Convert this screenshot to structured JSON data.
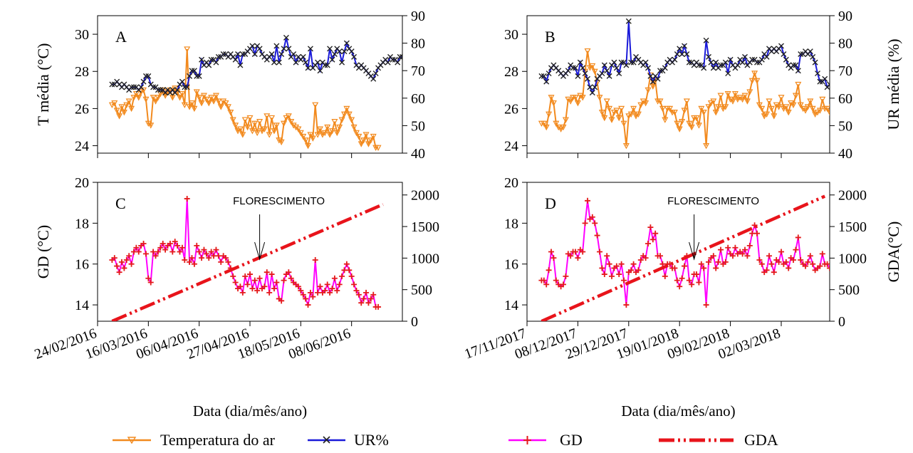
{
  "colors": {
    "temp": "#f28a1e",
    "ur": "#1a1ad9",
    "gd_line": "#ff00ff",
    "gd_marker": "#e41a1a",
    "gda": "#e8141b"
  },
  "axes": {
    "temp_ylabel": "T média (°C)",
    "ur_ylabel_A": "",
    "ur_ylabel_B": "UR média (%)",
    "gd_ylabel": "GD (°C)",
    "gda_ylabel_C": "",
    "gda_ylabel_D": "GDA(°C)",
    "xlabel": "Data (dia/mês/ano)",
    "temp_ticks": [
      24,
      26,
      28,
      30
    ],
    "ur_ticks": [
      40,
      50,
      60,
      70,
      80,
      90
    ],
    "gd_ticks": [
      14,
      16,
      18,
      20
    ],
    "gda_ticks": [
      0,
      500,
      1000,
      1500,
      2000
    ]
  },
  "legend": {
    "temp": "Temperatura do ar",
    "ur": "UR%",
    "gd": "GD",
    "gda": "GDA"
  },
  "annotations": {
    "flowering": "FLORESCIMENTO"
  },
  "chart_data": [
    {
      "panel": "A",
      "type": "line",
      "period": 1,
      "x_kind": "date",
      "y": "temp_ur",
      "x_start": "2016-03-01",
      "x_ticks": [
        "24/02/2016",
        "16/03/2016",
        "06/04/2016",
        "27/04/2016",
        "18/05/2016",
        "08/06/2016"
      ],
      "xlim": [
        "2016-02-24",
        "2016-06-29"
      ],
      "ylim_left": [
        23.6,
        31
      ],
      "ylim_right": [
        40,
        90
      ],
      "series": [
        {
          "name": "Temperatura do ar",
          "axis": "left",
          "values": [
            26.2,
            26.3,
            25.9,
            25.6,
            26.1,
            25.8,
            26.2,
            26.4,
            26.0,
            26.6,
            26.8,
            26.6,
            26.9,
            27.0,
            26.5,
            25.2,
            25.1,
            26.6,
            26.4,
            26.6,
            26.8,
            27.0,
            26.7,
            26.9,
            27.0,
            26.6,
            27.1,
            26.9,
            26.6,
            26.8,
            26.2,
            29.2,
            26.1,
            26.3,
            26.0,
            26.9,
            26.6,
            26.3,
            26.7,
            26.5,
            26.3,
            26.6,
            26.4,
            26.7,
            26.4,
            26.1,
            26.4,
            26.3,
            26.1,
            25.8,
            25.4,
            25.1,
            24.8,
            24.9,
            24.6,
            25.4,
            25.0,
            25.5,
            24.8,
            25.2,
            24.7,
            25.3,
            24.8,
            24.9,
            25.6,
            24.6,
            25.5,
            24.8,
            25.1,
            24.3,
            24.2,
            25.2,
            25.5,
            25.6,
            25.3,
            25.1,
            25.0,
            24.9,
            24.7,
            24.5,
            24.3,
            24.0,
            24.6,
            24.4,
            26.2,
            24.6,
            24.9,
            24.6,
            24.7,
            25.0,
            24.6,
            24.8,
            25.3,
            24.7,
            25.0,
            25.4,
            25.7,
            26.0,
            25.7,
            25.4,
            25.0,
            24.7,
            24.5,
            24.1,
            24.3,
            24.6,
            24.1,
            24.3,
            24.5,
            23.9,
            23.9
          ]
        },
        {
          "name": "UR%",
          "axis": "right",
          "values": [
            65,
            65,
            66,
            65,
            64,
            65,
            64,
            63,
            64,
            64,
            64,
            63,
            64,
            66,
            68,
            68,
            65,
            64,
            64,
            63,
            63,
            63,
            62,
            63,
            62,
            63,
            62,
            63,
            65,
            66,
            64,
            64,
            68,
            70,
            70,
            68,
            68,
            74,
            72,
            73,
            72,
            74,
            74,
            73,
            75,
            75,
            76,
            76,
            75,
            76,
            75,
            74,
            76,
            72,
            76,
            76,
            77,
            78,
            79,
            76,
            79,
            78,
            76,
            75,
            74,
            75,
            76,
            73,
            79,
            73,
            76,
            78,
            82,
            78,
            75,
            76,
            73,
            75,
            74,
            75,
            73,
            71,
            78,
            71,
            72,
            73,
            70,
            73,
            72,
            72,
            78,
            74,
            76,
            78,
            77,
            73,
            77,
            80,
            78,
            77,
            75,
            72,
            71,
            72,
            71,
            70,
            69,
            68,
            67,
            69,
            71,
            72,
            73,
            74,
            73,
            75,
            74,
            74,
            73,
            75,
            75,
            74,
            75
          ]
        }
      ]
    },
    {
      "panel": "B",
      "type": "line",
      "period": 2,
      "x_kind": "date",
      "y": "temp_ur",
      "x_start": "2017-11-23",
      "x_ticks": [
        "17/11/2017",
        "08/12/2017",
        "29/12/2017",
        "19/01/2018",
        "09/02/2018",
        "02/03/2018"
      ],
      "xlim": [
        "2017-11-17",
        "2018-03-22"
      ],
      "ylim_left": [
        23.6,
        31
      ],
      "ylim_right": [
        40,
        90
      ],
      "series": [
        {
          "name": "Temperatura do ar",
          "axis": "left",
          "values": [
            25.2,
            25.2,
            25.0,
            25.7,
            26.6,
            26.3,
            25.2,
            25.0,
            24.9,
            25.0,
            25.4,
            26.5,
            26.4,
            26.6,
            26.6,
            26.3,
            26.7,
            26.6,
            28.0,
            29.1,
            28.2,
            28.3,
            28.0,
            27.4,
            26.6,
            25.8,
            25.5,
            26.4,
            26.0,
            25.4,
            25.8,
            25.9,
            25.5,
            26.0,
            25.2,
            24.0,
            25.6,
            25.7,
            26.0,
            25.6,
            25.7,
            26.2,
            26.4,
            26.3,
            27.0,
            27.8,
            27.2,
            27.5,
            26.4,
            26.4,
            26.0,
            25.4,
            26.0,
            26.0,
            25.8,
            25.8,
            25.2,
            24.9,
            25.3,
            25.9,
            26.4,
            25.2,
            25.0,
            25.5,
            25.5,
            25.1,
            26.0,
            25.8,
            24.0,
            26.1,
            26.3,
            26.4,
            25.8,
            26.1,
            26.7,
            26.0,
            26.1,
            26.8,
            26.5,
            26.4,
            26.8,
            26.5,
            26.6,
            26.5,
            26.7,
            26.4,
            26.9,
            27.5,
            27.9,
            27.5,
            26.2,
            26.0,
            25.6,
            25.7,
            26.4,
            26.0,
            25.6,
            26.2,
            26.1,
            26.6,
            26.0,
            26.1,
            25.8,
            26.3,
            26.2,
            26.7,
            27.3,
            26.2,
            26.0,
            25.9,
            26.1,
            26.4,
            26.0,
            25.7,
            25.8,
            25.9,
            26.5,
            26.0,
            26.0,
            25.8,
            26.1,
            27.2,
            27.8,
            27.9,
            28.5,
            28.0,
            27.5,
            28.0,
            26.5,
            26.3,
            25.4,
            26.0,
            25.8,
            26.3,
            25.5
          ]
        },
        {
          "name": "UR%",
          "axis": "right",
          "values": [
            68,
            68,
            66,
            69,
            71,
            72,
            71,
            70,
            69,
            68,
            69,
            70,
            72,
            71,
            71,
            68,
            73,
            71,
            69,
            67,
            64,
            62,
            64,
            67,
            68,
            69,
            72,
            70,
            68,
            72,
            73,
            71,
            69,
            73,
            73,
            72,
            88,
            73,
            73,
            75,
            74,
            73,
            72,
            73,
            71,
            68,
            66,
            68,
            67,
            70,
            70,
            71,
            73,
            74,
            73,
            74,
            76,
            78,
            76,
            79,
            76,
            73,
            73,
            72,
            73,
            72,
            72,
            71,
            81,
            75,
            73,
            71,
            73,
            71,
            72,
            72,
            73,
            69,
            74,
            72,
            71,
            72,
            74,
            73,
            75,
            72,
            73,
            74,
            74,
            73,
            73,
            74,
            76,
            75,
            78,
            77,
            78,
            77,
            78,
            79,
            76,
            74,
            72,
            71,
            72,
            72,
            70,
            76,
            76,
            77,
            76,
            77,
            75,
            73,
            69,
            66,
            66,
            67,
            64,
            65,
            63,
            66,
            64,
            68,
            70,
            70,
            71,
            70,
            68
          ]
        }
      ]
    },
    {
      "panel": "C",
      "type": "line",
      "period": 1,
      "x_kind": "date",
      "y": "gd_gda",
      "x_start": "2016-03-01",
      "x_ticks": [
        "24/02/2016",
        "16/03/2016",
        "06/04/2016",
        "27/04/2016",
        "18/05/2016",
        "08/06/2016"
      ],
      "xlim": [
        "2016-02-24",
        "2016-06-29"
      ],
      "ylim_left": [
        13.2,
        20
      ],
      "ylim_right": [
        0,
        2200
      ],
      "flowering_date": "2016-05-01",
      "series": [
        {
          "name": "GD",
          "axis": "left",
          "values": [
            16.2,
            16.3,
            15.9,
            15.6,
            16.1,
            15.8,
            16.2,
            16.4,
            16.0,
            16.6,
            16.8,
            16.6,
            16.9,
            17.0,
            16.5,
            15.3,
            15.1,
            16.6,
            16.4,
            16.6,
            16.8,
            17.0,
            16.7,
            16.9,
            17.0,
            16.6,
            17.1,
            16.9,
            16.6,
            16.8,
            16.2,
            19.2,
            16.1,
            16.3,
            16.0,
            16.9,
            16.6,
            16.3,
            16.7,
            16.5,
            16.3,
            16.6,
            16.4,
            16.7,
            16.4,
            16.1,
            16.4,
            16.3,
            16.1,
            15.8,
            15.4,
            15.1,
            14.8,
            14.9,
            14.6,
            15.4,
            15.0,
            15.5,
            14.8,
            15.2,
            14.7,
            15.3,
            14.8,
            14.9,
            15.6,
            14.6,
            15.5,
            14.8,
            15.1,
            14.3,
            14.2,
            15.2,
            15.5,
            15.6,
            15.3,
            15.1,
            15.0,
            14.9,
            14.7,
            14.5,
            14.3,
            14.0,
            14.6,
            14.4,
            16.2,
            14.6,
            14.9,
            14.6,
            14.7,
            15.0,
            14.6,
            14.8,
            15.3,
            14.7,
            15.0,
            15.4,
            15.7,
            16.0,
            15.7,
            15.4,
            15.0,
            14.7,
            14.5,
            14.1,
            14.3,
            14.6,
            14.1,
            14.3,
            14.5,
            13.9,
            13.9
          ]
        },
        {
          "name": "GDA",
          "axis": "right",
          "x": [
            "2016-03-01",
            "2016-06-21"
          ],
          "values": [
            0,
            1850
          ]
        }
      ]
    },
    {
      "panel": "D",
      "type": "line",
      "period": 2,
      "x_kind": "date",
      "y": "gd_gda",
      "x_start": "2017-11-23",
      "x_ticks": [
        "17/11/2017",
        "08/12/2017",
        "29/12/2017",
        "19/01/2018",
        "09/02/2018",
        "02/03/2018"
      ],
      "xlim": [
        "2017-11-17",
        "2018-03-22"
      ],
      "ylim_left": [
        13.2,
        20
      ],
      "ylim_right": [
        0,
        2200
      ],
      "flowering_date": "2018-01-25",
      "series": [
        {
          "name": "GD",
          "axis": "left",
          "values": [
            15.2,
            15.2,
            15.0,
            15.7,
            16.6,
            16.3,
            15.2,
            15.0,
            14.9,
            15.0,
            15.4,
            16.5,
            16.4,
            16.6,
            16.6,
            16.3,
            16.7,
            16.6,
            18.0,
            19.1,
            18.2,
            18.3,
            18.0,
            17.4,
            16.6,
            15.8,
            15.5,
            16.4,
            16.0,
            15.4,
            15.8,
            15.9,
            15.5,
            16.0,
            15.2,
            14.0,
            15.6,
            15.7,
            16.0,
            15.6,
            15.7,
            16.2,
            16.4,
            16.3,
            17.0,
            17.8,
            17.2,
            17.5,
            16.4,
            16.4,
            16.0,
            15.4,
            16.0,
            16.0,
            15.8,
            15.8,
            15.2,
            14.9,
            15.3,
            15.9,
            16.4,
            15.2,
            15.0,
            15.5,
            15.5,
            15.1,
            16.0,
            15.8,
            14.0,
            16.1,
            16.3,
            16.4,
            15.8,
            16.1,
            16.7,
            16.0,
            16.1,
            16.8,
            16.5,
            16.4,
            16.8,
            16.5,
            16.6,
            16.5,
            16.7,
            16.4,
            16.9,
            17.5,
            17.9,
            17.5,
            16.2,
            16.0,
            15.6,
            15.7,
            16.4,
            16.0,
            15.6,
            16.2,
            16.1,
            16.6,
            16.0,
            16.1,
            15.8,
            16.3,
            16.2,
            16.7,
            17.3,
            16.2,
            16.0,
            15.9,
            16.1,
            16.4,
            16.0,
            15.7,
            15.8,
            15.9,
            16.5,
            16.0,
            16.0,
            15.8,
            16.1,
            17.2,
            17.8,
            17.9,
            18.5,
            18.0,
            17.5,
            18.0,
            16.5,
            16.3,
            15.4,
            16.0,
            15.8,
            16.3,
            15.5
          ]
        },
        {
          "name": "GDA",
          "axis": "right",
          "x": [
            "2017-11-23",
            "2018-03-20"
          ],
          "values": [
            0,
            1980
          ]
        }
      ]
    }
  ]
}
